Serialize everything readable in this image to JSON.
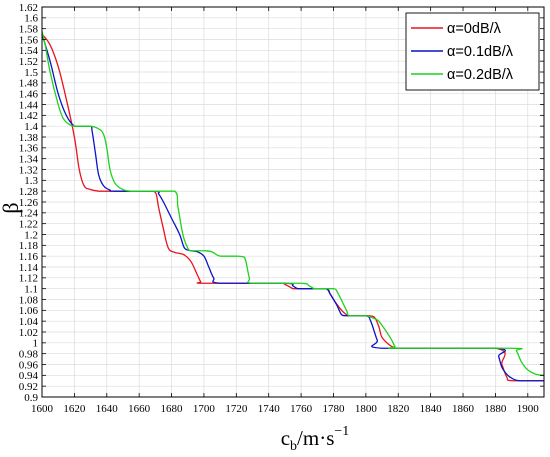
{
  "chart_data": {
    "type": "line",
    "xlabel": "c_b/m·s^-1",
    "xlabel_parts": {
      "base": "c",
      "sub": "b",
      "mid": "/m·s",
      "sup": "−1"
    },
    "ylabel": "β",
    "xlim": [
      1600,
      1910
    ],
    "ylim": [
      0.9,
      1.62
    ],
    "xticks": [
      1600,
      1620,
      1640,
      1660,
      1680,
      1700,
      1720,
      1740,
      1760,
      1780,
      1800,
      1820,
      1840,
      1860,
      1880,
      1900
    ],
    "yticks": [
      0.9,
      0.92,
      0.94,
      0.96,
      0.98,
      1,
      1.02,
      1.04,
      1.06,
      1.08,
      1.1,
      1.12,
      1.14,
      1.16,
      1.18,
      1.2,
      1.22,
      1.24,
      1.26,
      1.28,
      1.3,
      1.32,
      1.34,
      1.36,
      1.38,
      1.4,
      1.42,
      1.44,
      1.46,
      1.48,
      1.5,
      1.52,
      1.54,
      1.56,
      1.58,
      1.6,
      1.62
    ],
    "ytick_labels": [
      "0.9",
      "0.92",
      "0.94",
      "0.96",
      "0.98",
      "1",
      "1.02",
      "1.04",
      "1.06",
      "1.08",
      "1.1",
      "1.12",
      "1.14",
      "1.16",
      "1.18",
      "1.2",
      "1.22",
      "1.24",
      "1.26",
      "1.28",
      "1.3",
      "1.32",
      "1.34",
      "1.36",
      "1.38",
      "1.4",
      "1.42",
      "1.44",
      "1.46",
      "1.48",
      "1.5",
      "1.52",
      "1.54",
      "1.56",
      "1.58",
      "1.6",
      "1.62"
    ],
    "grid": true,
    "legend_position": "top-right",
    "series": [
      {
        "name": "α=0dB/λ",
        "color": "#e8141e",
        "x": [
          1600,
          1605,
          1610,
          1615,
          1620,
          1623,
          1626,
          1630,
          1635,
          1640,
          1665,
          1670,
          1672,
          1675,
          1678,
          1682,
          1685,
          1688,
          1692,
          1696,
          1698,
          1700,
          1745,
          1750,
          1755,
          1758,
          1760,
          1775,
          1778,
          1780,
          1785,
          1788,
          1790,
          1800,
          1805,
          1808,
          1810,
          1815,
          1818,
          1820,
          1880,
          1884,
          1887,
          1890,
          1910
        ],
        "y": [
          1.57,
          1.55,
          1.51,
          1.45,
          1.38,
          1.32,
          1.29,
          1.283,
          1.28,
          1.28,
          1.28,
          1.278,
          1.25,
          1.21,
          1.175,
          1.167,
          1.165,
          1.162,
          1.15,
          1.125,
          1.113,
          1.11,
          1.11,
          1.108,
          1.1,
          1.1,
          1.1,
          1.1,
          1.09,
          1.08,
          1.06,
          1.052,
          1.05,
          1.05,
          1.048,
          1.03,
          1.01,
          0.995,
          0.991,
          0.99,
          0.99,
          0.96,
          0.937,
          0.93,
          0.93
        ]
      },
      {
        "name": "α=0.1dB/λ",
        "color": "#0a14c8",
        "x": [
          1600,
          1605,
          1610,
          1615,
          1620,
          1625,
          1630,
          1631,
          1633,
          1635,
          1638,
          1642,
          1645,
          1670,
          1672,
          1675,
          1680,
          1685,
          1688,
          1692,
          1696,
          1700,
          1703,
          1706,
          1710,
          1750,
          1755,
          1758,
          1765,
          1775,
          1778,
          1782,
          1785,
          1788,
          1800,
          1803,
          1807,
          1810,
          1880,
          1882,
          1884,
          1887,
          1890,
          1895,
          1910
        ],
        "y": [
          1.57,
          1.52,
          1.46,
          1.42,
          1.4,
          1.4,
          1.4,
          1.39,
          1.35,
          1.31,
          1.29,
          1.282,
          1.28,
          1.28,
          1.275,
          1.26,
          1.23,
          1.2,
          1.175,
          1.17,
          1.168,
          1.16,
          1.14,
          1.12,
          1.11,
          1.11,
          1.105,
          1.1,
          1.1,
          1.1,
          1.09,
          1.07,
          1.052,
          1.05,
          1.05,
          1.04,
          1.005,
          0.99,
          0.99,
          0.975,
          0.955,
          0.942,
          0.935,
          0.93,
          0.93
        ]
      },
      {
        "name": "α=0.2dB/λ",
        "color": "#1ed21e",
        "x": [
          1600,
          1602,
          1605,
          1610,
          1613,
          1616,
          1620,
          1630,
          1635,
          1638,
          1640,
          1642,
          1645,
          1650,
          1655,
          1660,
          1670,
          1682,
          1684,
          1687,
          1690,
          1692,
          1700,
          1705,
          1710,
          1720,
          1725,
          1728,
          1730,
          1760,
          1765,
          1768,
          1770,
          1780,
          1783,
          1788,
          1790,
          1800,
          1805,
          1808,
          1815,
          1818,
          1820,
          1890,
          1893,
          1896,
          1900,
          1905,
          1910
        ],
        "y": [
          1.575,
          1.55,
          1.5,
          1.44,
          1.415,
          1.405,
          1.4,
          1.4,
          1.395,
          1.385,
          1.36,
          1.32,
          1.295,
          1.283,
          1.28,
          1.28,
          1.28,
          1.28,
          1.25,
          1.2,
          1.175,
          1.17,
          1.17,
          1.168,
          1.16,
          1.16,
          1.158,
          1.12,
          1.11,
          1.11,
          1.105,
          1.1,
          1.1,
          1.1,
          1.09,
          1.06,
          1.05,
          1.05,
          1.045,
          1.04,
          1.01,
          0.993,
          0.99,
          0.99,
          0.985,
          0.965,
          0.95,
          0.942,
          0.94
        ]
      }
    ]
  }
}
